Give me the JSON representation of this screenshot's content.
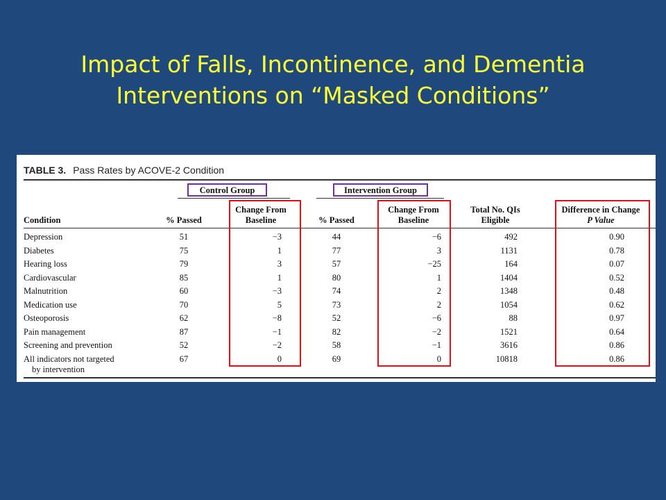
{
  "slide": {
    "title_line1": "Impact of Falls, Incontinence, and Dementia",
    "title_line2": "Interventions on “Masked Conditions”"
  },
  "table": {
    "number": "TABLE 3.",
    "caption": "Pass Rates by ACOVE-2 Condition",
    "groups": {
      "control": "Control Group",
      "intervention": "Intervention Group"
    },
    "headers": {
      "condition": "Condition",
      "pct_passed": "% Passed",
      "change_l1": "Change From",
      "change_l2": "Baseline",
      "total_l1": "Total No. QIs",
      "total_l2": "Eligible",
      "diff_l1": "Difference in Change",
      "diff_l2": "P Value"
    },
    "rows": [
      {
        "condition": "Depression",
        "condition_l2": "",
        "c_pass": "51",
        "c_change": "−3",
        "i_pass": "44",
        "i_change": "−6",
        "total": "492",
        "p": "0.90"
      },
      {
        "condition": "Diabetes",
        "condition_l2": "",
        "c_pass": "75",
        "c_change": "1",
        "i_pass": "77",
        "i_change": "3",
        "total": "1131",
        "p": "0.78"
      },
      {
        "condition": "Hearing loss",
        "condition_l2": "",
        "c_pass": "79",
        "c_change": "3",
        "i_pass": "57",
        "i_change": "−25",
        "total": "164",
        "p": "0.07"
      },
      {
        "condition": "Cardiovascular",
        "condition_l2": "",
        "c_pass": "85",
        "c_change": "1",
        "i_pass": "80",
        "i_change": "1",
        "total": "1404",
        "p": "0.52"
      },
      {
        "condition": "Malnutrition",
        "condition_l2": "",
        "c_pass": "60",
        "c_change": "−3",
        "i_pass": "74",
        "i_change": "2",
        "total": "1348",
        "p": "0.48"
      },
      {
        "condition": "Medication use",
        "condition_l2": "",
        "c_pass": "70",
        "c_change": "5",
        "i_pass": "73",
        "i_change": "2",
        "total": "1054",
        "p": "0.62"
      },
      {
        "condition": "Osteoporosis",
        "condition_l2": "",
        "c_pass": "62",
        "c_change": "−8",
        "i_pass": "52",
        "i_change": "−6",
        "total": "88",
        "p": "0.97"
      },
      {
        "condition": "Pain management",
        "condition_l2": "",
        "c_pass": "87",
        "c_change": "−1",
        "i_pass": "82",
        "i_change": "−2",
        "total": "1521",
        "p": "0.64"
      },
      {
        "condition": "Screening and prevention",
        "condition_l2": "",
        "c_pass": "52",
        "c_change": "−2",
        "i_pass": "58",
        "i_change": "−1",
        "total": "3616",
        "p": "0.86"
      },
      {
        "condition": "All indicators not targeted",
        "condition_l2": "by intervention",
        "c_pass": "67",
        "c_change": "0",
        "i_pass": "69",
        "i_change": "0",
        "total": "10818",
        "p": "0.86"
      }
    ]
  },
  "colors": {
    "background": "#1f497d",
    "title": "#ffff33",
    "group_box": "#7030a0",
    "highlight_box": "#e0101a"
  }
}
